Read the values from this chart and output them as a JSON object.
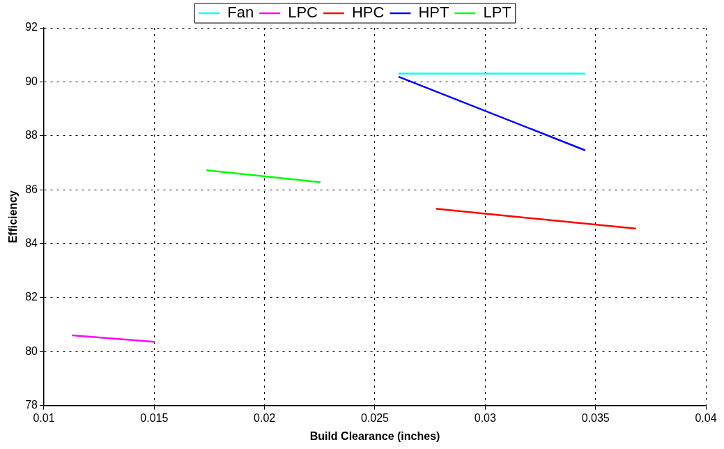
{
  "chart_data": {
    "type": "line",
    "xlabel": "Build Clearance (inches)",
    "ylabel": "Efficiency",
    "xlim": [
      0.01,
      0.04
    ],
    "xticks": [
      0.01,
      0.015,
      0.02,
      0.025,
      0.03,
      0.035,
      0.04
    ],
    "ylim": [
      78,
      92
    ],
    "yticks": [
      78,
      80,
      82,
      84,
      86,
      88,
      90,
      92
    ],
    "grid": true,
    "legend": "top",
    "marker": "none",
    "line_style": "solid",
    "series": [
      {
        "name": "Fan",
        "color": "#00ffff",
        "x": [
          0.0261,
          0.0345
        ],
        "values": [
          90.31,
          90.31
        ]
      },
      {
        "name": "LPC",
        "color": "#ff00ff",
        "x": [
          0.0113,
          0.015
        ],
        "values": [
          80.6,
          80.36
        ]
      },
      {
        "name": "HPC",
        "color": "#ff0000",
        "x": [
          0.0278,
          0.0368
        ],
        "values": [
          85.29,
          84.56
        ]
      },
      {
        "name": "HPT",
        "color": "#0000ff",
        "x": [
          0.0261,
          0.0345
        ],
        "values": [
          90.18,
          87.47
        ]
      },
      {
        "name": "LPT",
        "color": "#00ff00",
        "x": [
          0.0174,
          0.0225
        ],
        "values": [
          86.72,
          86.28
        ]
      }
    ]
  }
}
